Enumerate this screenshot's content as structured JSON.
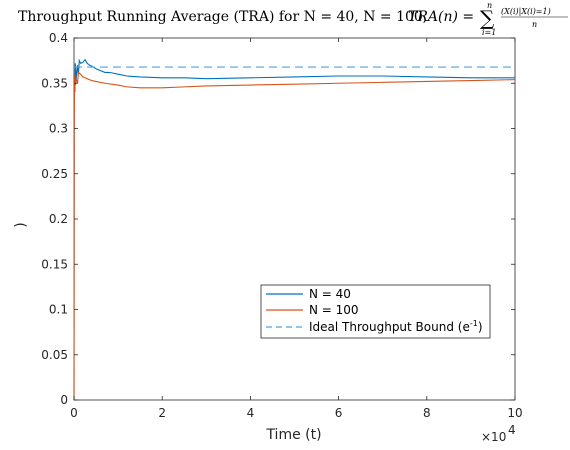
{
  "chart_data": {
    "type": "line",
    "title": "Throughput Running Average (TRA) for N = 40, N = 100,",
    "title_formula": {
      "lhs": "TRA(n) =",
      "sum_upper": "n",
      "sum_lower": "i=1",
      "numerator": "(X(i)|X(i)=1)",
      "denominator": "n"
    },
    "xlabel": "Time (t)",
    "ylabel": ")",
    "x_multiplier_base": "×10",
    "x_multiplier_exp": "4",
    "xlim": [
      0,
      10
    ],
    "ylim": [
      0,
      0.4
    ],
    "xticks": [
      "0",
      "2",
      "4",
      "6",
      "8",
      "10"
    ],
    "yticks": [
      "0",
      "0.05",
      "0.1",
      "0.15",
      "0.2",
      "0.25",
      "0.3",
      "0.35",
      "0.4"
    ],
    "grid": false,
    "legend_position": "lower-right-center",
    "series": [
      {
        "name": "N = 40",
        "color": "#0072BD",
        "style": "solid",
        "x": [
          0,
          0.005,
          0.01,
          0.02,
          0.03,
          0.05,
          0.08,
          0.1,
          0.12,
          0.15,
          0.2,
          0.25,
          0.3,
          0.35,
          0.4,
          0.5,
          0.6,
          0.7,
          0.8,
          1.0,
          1.2,
          1.5,
          2.0,
          2.5,
          3.0,
          4.0,
          5.0,
          6.0,
          7.0,
          8.0,
          9.0,
          10.0
        ],
        "y": [
          0,
          0.33,
          0.35,
          0.34,
          0.372,
          0.355,
          0.37,
          0.36,
          0.375,
          0.372,
          0.373,
          0.376,
          0.372,
          0.37,
          0.369,
          0.366,
          0.364,
          0.362,
          0.362,
          0.36,
          0.358,
          0.357,
          0.356,
          0.356,
          0.355,
          0.356,
          0.357,
          0.358,
          0.358,
          0.357,
          0.356,
          0.356
        ]
      },
      {
        "name": "N = 100",
        "color": "#D95319",
        "style": "solid",
        "x": [
          0,
          0.005,
          0.01,
          0.02,
          0.03,
          0.05,
          0.08,
          0.1,
          0.15,
          0.2,
          0.3,
          0.4,
          0.5,
          0.7,
          1.0,
          1.2,
          1.5,
          2.0,
          2.5,
          3.0,
          4.0,
          5.0,
          6.0,
          7.0,
          8.0,
          9.0,
          10.0
        ],
        "y": [
          0,
          0.3,
          0.345,
          0.36,
          0.348,
          0.355,
          0.35,
          0.362,
          0.36,
          0.357,
          0.355,
          0.353,
          0.352,
          0.35,
          0.348,
          0.346,
          0.345,
          0.345,
          0.346,
          0.347,
          0.348,
          0.349,
          0.35,
          0.351,
          0.352,
          0.353,
          0.354
        ]
      },
      {
        "name": "Ideal Throughput Bound (e",
        "name_superscript": "-1",
        "name_suffix": ")",
        "color": "#4DA3E0",
        "style": "dashed",
        "x": [
          0,
          10
        ],
        "y": [
          0.3679,
          0.3679
        ]
      }
    ]
  }
}
